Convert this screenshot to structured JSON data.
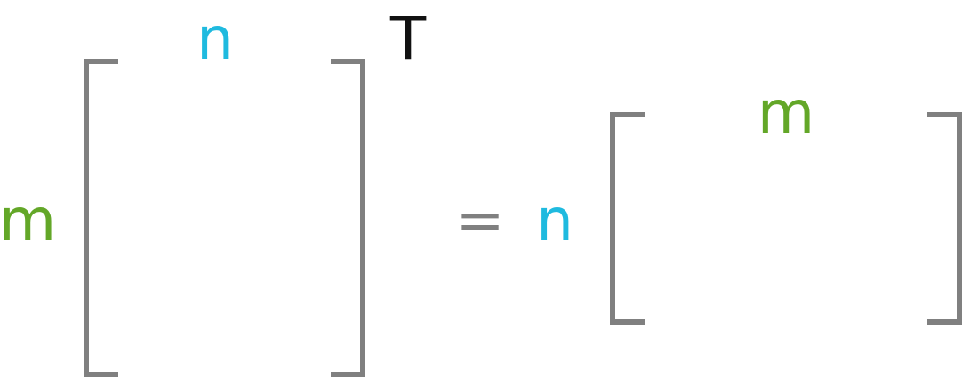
{
  "equation": {
    "left_matrix": {
      "row_label": "m",
      "col_label": "n",
      "superscript": "T"
    },
    "equals": "=",
    "right_matrix": {
      "row_label": "n",
      "col_label": "m"
    }
  },
  "colors": {
    "m": "#63a728",
    "n": "#1fbadf",
    "bracket": "#808080",
    "equals": "#808080",
    "superscript": "#111111"
  }
}
